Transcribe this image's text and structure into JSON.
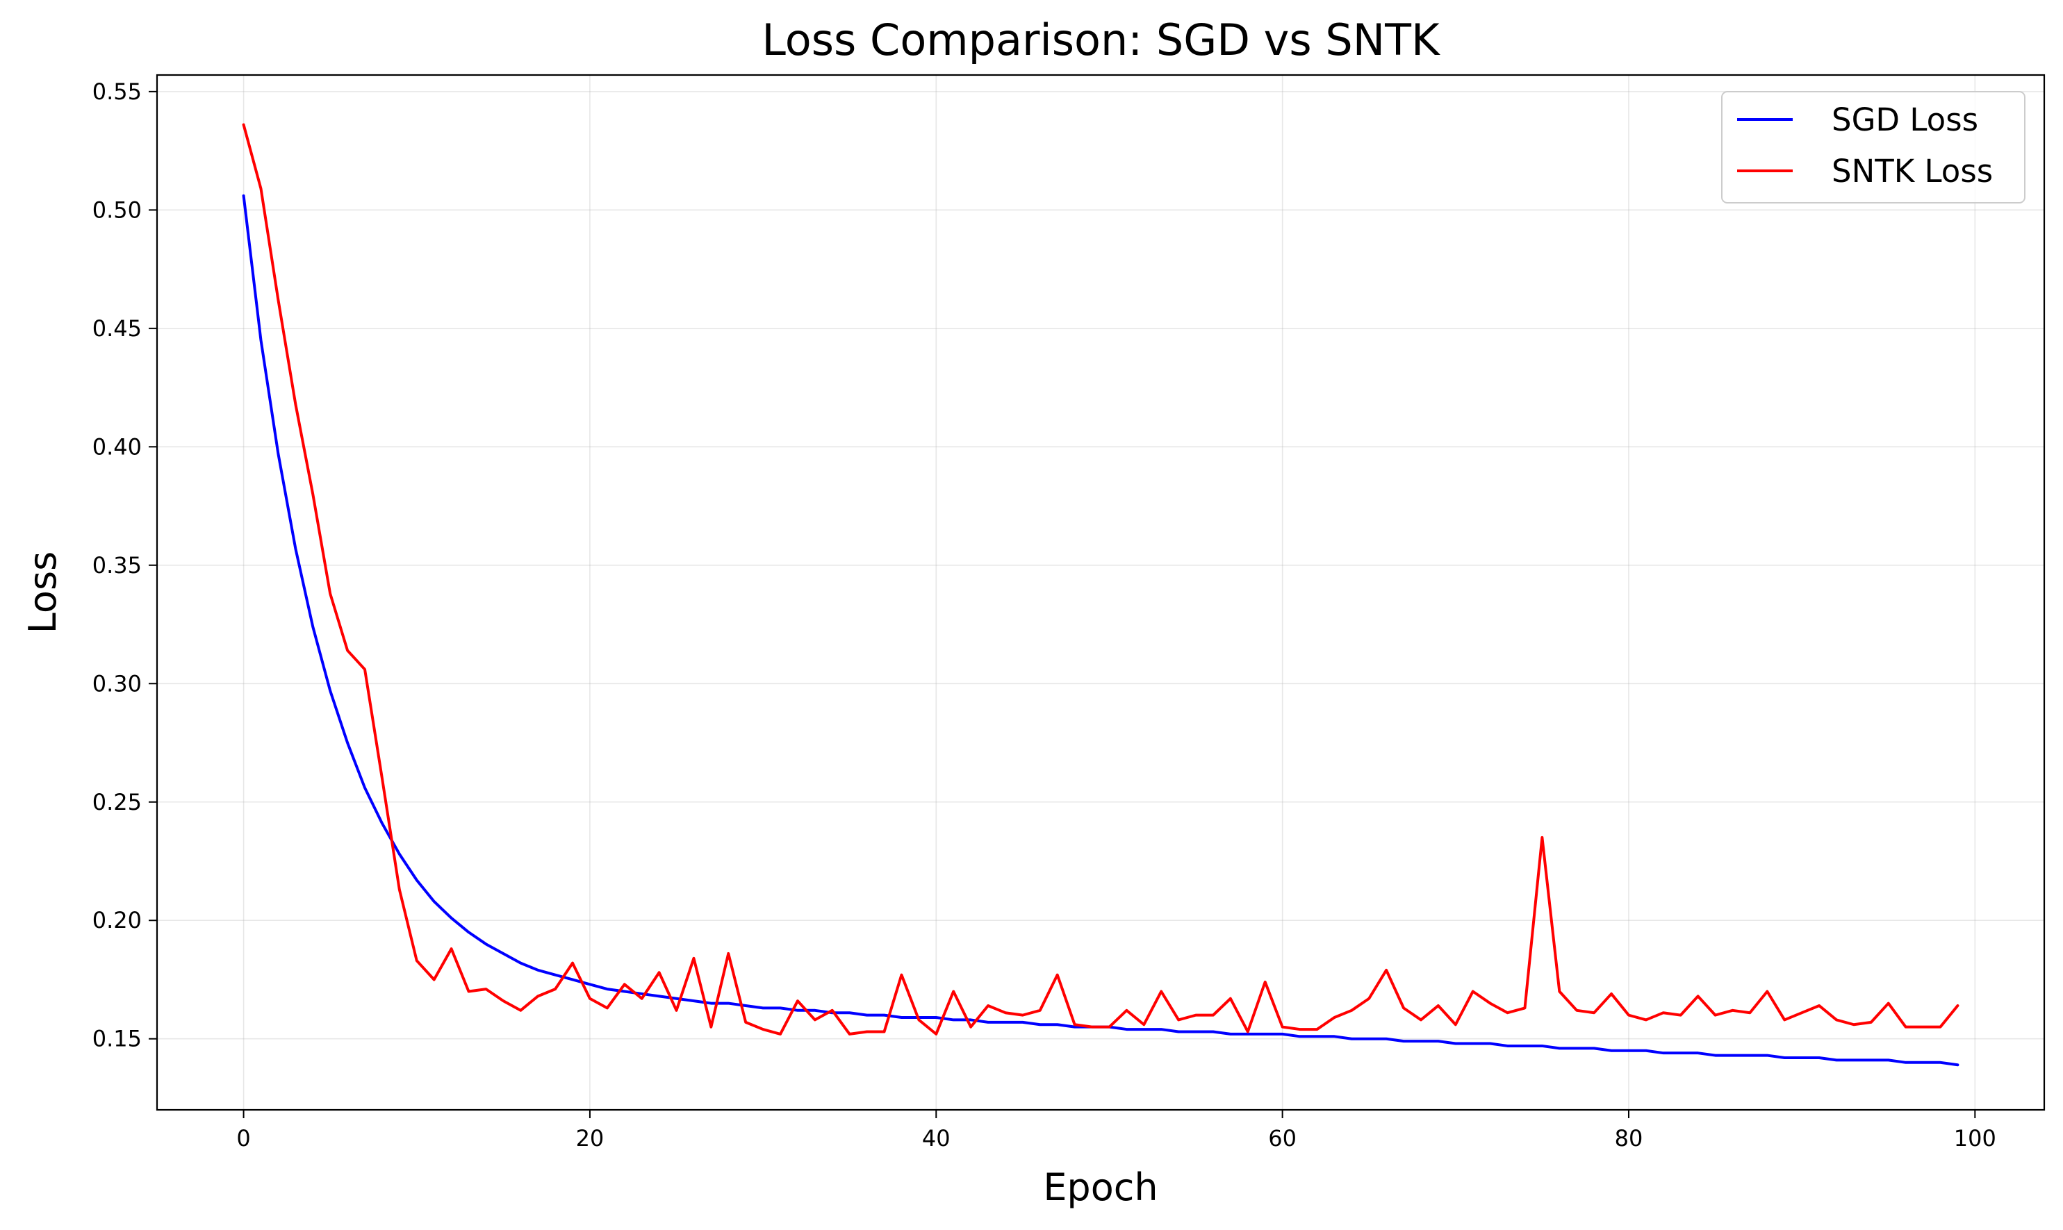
{
  "chart_data": {
    "type": "line",
    "title": "Loss Comparison: SGD vs SNTK",
    "xlabel": "Epoch",
    "ylabel": "Loss",
    "xlim": [
      -5,
      104
    ],
    "ylim": [
      0.12,
      0.557
    ],
    "xticks": [
      0,
      20,
      40,
      60,
      80,
      100
    ],
    "yticks": [
      0.15,
      0.2,
      0.25,
      0.3,
      0.35,
      0.4,
      0.45,
      0.5,
      0.55
    ],
    "xtick_labels": [
      "0",
      "20",
      "40",
      "60",
      "80",
      "100"
    ],
    "ytick_labels": [
      "0.15",
      "0.20",
      "0.25",
      "0.30",
      "0.35",
      "0.40",
      "0.45",
      "0.50",
      "0.55"
    ],
    "grid": true,
    "legend_position": "top-right",
    "series": [
      {
        "name": "SGD Loss",
        "color": "#0000ff",
        "values": [
          0.506,
          0.445,
          0.397,
          0.357,
          0.324,
          0.297,
          0.275,
          0.256,
          0.241,
          0.228,
          0.217,
          0.208,
          0.201,
          0.195,
          0.19,
          0.186,
          0.182,
          0.179,
          0.177,
          0.175,
          0.173,
          0.171,
          0.17,
          0.169,
          0.168,
          0.167,
          0.166,
          0.165,
          0.165,
          0.164,
          0.163,
          0.163,
          0.162,
          0.162,
          0.161,
          0.161,
          0.16,
          0.16,
          0.159,
          0.159,
          0.159,
          0.158,
          0.158,
          0.157,
          0.157,
          0.157,
          0.156,
          0.156,
          0.155,
          0.155,
          0.155,
          0.154,
          0.154,
          0.154,
          0.153,
          0.153,
          0.153,
          0.152,
          0.152,
          0.152,
          0.152,
          0.151,
          0.151,
          0.151,
          0.15,
          0.15,
          0.15,
          0.149,
          0.149,
          0.149,
          0.148,
          0.148,
          0.148,
          0.147,
          0.147,
          0.147,
          0.146,
          0.146,
          0.146,
          0.145,
          0.145,
          0.145,
          0.144,
          0.144,
          0.144,
          0.143,
          0.143,
          0.143,
          0.143,
          0.142,
          0.142,
          0.142,
          0.141,
          0.141,
          0.141,
          0.141,
          0.14,
          0.14,
          0.14,
          0.139
        ]
      },
      {
        "name": "SNTK Loss",
        "color": "#ff0000",
        "values": [
          0.536,
          0.509,
          0.462,
          0.418,
          0.38,
          0.338,
          0.314,
          0.306,
          0.26,
          0.213,
          0.183,
          0.175,
          0.188,
          0.17,
          0.171,
          0.166,
          0.162,
          0.168,
          0.171,
          0.182,
          0.167,
          0.163,
          0.173,
          0.167,
          0.178,
          0.162,
          0.184,
          0.155,
          0.186,
          0.157,
          0.154,
          0.152,
          0.166,
          0.158,
          0.162,
          0.152,
          0.153,
          0.153,
          0.177,
          0.158,
          0.152,
          0.17,
          0.155,
          0.164,
          0.161,
          0.16,
          0.162,
          0.177,
          0.156,
          0.155,
          0.155,
          0.162,
          0.156,
          0.17,
          0.158,
          0.16,
          0.16,
          0.167,
          0.153,
          0.174,
          0.155,
          0.154,
          0.154,
          0.159,
          0.162,
          0.167,
          0.179,
          0.163,
          0.158,
          0.164,
          0.156,
          0.17,
          0.165,
          0.161,
          0.163,
          0.235,
          0.17,
          0.162,
          0.161,
          0.169,
          0.16,
          0.158,
          0.161,
          0.16,
          0.168,
          0.16,
          0.162,
          0.161,
          0.17,
          0.158,
          0.161,
          0.164,
          0.158,
          0.156,
          0.157,
          0.165,
          0.155,
          0.155,
          0.155,
          0.164
        ]
      }
    ]
  }
}
